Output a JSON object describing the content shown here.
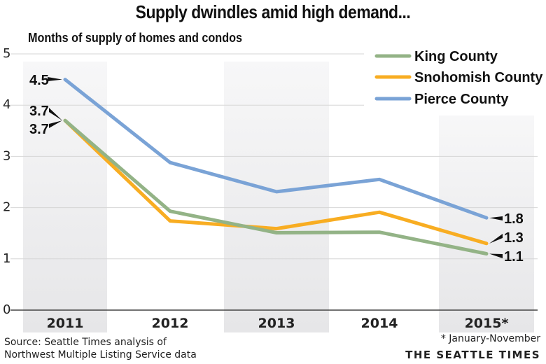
{
  "chart_data": {
    "type": "line",
    "title": "Supply dwindles amid high demand...",
    "subtitle": "Months of supply of homes and condos",
    "xlabel": "",
    "ylabel": "Months of supply of homes and condos",
    "categories": [
      "2011",
      "2012",
      "2013",
      "2014",
      "2015*"
    ],
    "ylim": [
      0,
      5
    ],
    "yticks": [
      "0",
      "1",
      "2",
      "3",
      "4",
      "5"
    ],
    "grid": true,
    "legend_position": "top-right",
    "series": [
      {
        "name": "King County",
        "color": "#93b386",
        "values": [
          3.7,
          1.93,
          1.51,
          1.52,
          1.1
        ],
        "labels": {
          "0": "3.7",
          "4": "1.1"
        }
      },
      {
        "name": "Snohomish County",
        "color": "#f8ad22",
        "values": [
          3.7,
          1.74,
          1.59,
          1.91,
          1.3
        ],
        "labels": {
          "0": "3.7",
          "4": "1.3"
        }
      },
      {
        "name": "Pierce County",
        "color": "#7aa3d6",
        "values": [
          4.5,
          2.88,
          2.31,
          2.55,
          1.8
        ],
        "labels": {
          "0": "4.5",
          "4": "1.8"
        }
      }
    ],
    "shaded_columns": [
      "2011",
      "2013",
      "2015*"
    ],
    "annotations": [
      "* January-November"
    ]
  },
  "footer": {
    "source_line1": "Source: Seattle Times analysis of",
    "source_line2": "Northwest Multiple Listing Service data",
    "note": "* January-November",
    "brand": "THE SEATTLE TIMES"
  },
  "colors": {
    "band": "#ececed",
    "grid": "#d6d6d6",
    "axis": "#444444"
  }
}
